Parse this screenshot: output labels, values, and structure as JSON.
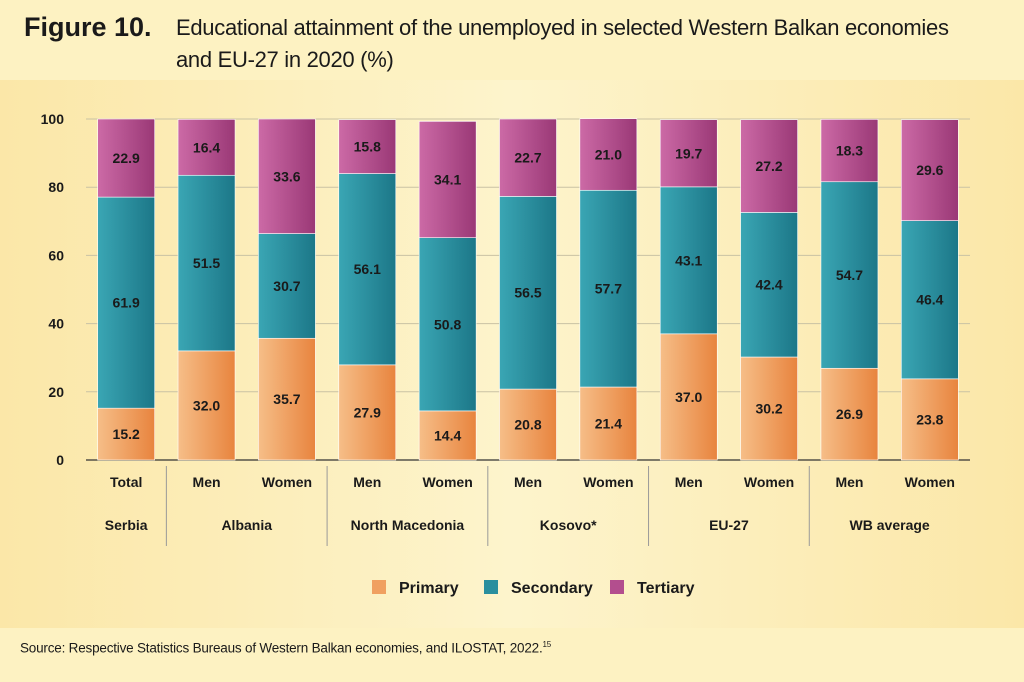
{
  "figure_label": "Figure 10.",
  "figure_title": "Educational attainment of the unemployed in selected Western Balkan economies and EU-27 in 2020 (%)",
  "source_text": "Source: Respective Statistics Bureaus of Western Balkan economies, and ILOSTAT, 2022.",
  "source_footnote": "15",
  "colors": {
    "primary": "#f0a060",
    "secondary": "#2a8f9e",
    "tertiary": "#b34e8e",
    "background": "#fdf2c2"
  },
  "chart_data": {
    "type": "bar",
    "stacked": true,
    "ylim": [
      0,
      100
    ],
    "yticks": [
      0,
      20,
      40,
      60,
      80,
      100
    ],
    "grid": true,
    "legend_position": "bottom",
    "categories": [
      "Total",
      "Men",
      "Women",
      "Men",
      "Women",
      "Men",
      "Women",
      "Men",
      "Women",
      "Men",
      "Women"
    ],
    "groups": [
      {
        "label": "Serbia",
        "size": 1
      },
      {
        "label": "Albania",
        "size": 2
      },
      {
        "label": "North Macedonia",
        "size": 2
      },
      {
        "label": "Kosovo*",
        "size": 2
      },
      {
        "label": "EU-27",
        "size": 2
      },
      {
        "label": "WB average",
        "size": 2
      }
    ],
    "series": [
      {
        "name": "Primary",
        "color": "#f0a060",
        "values": [
          15.2,
          32.0,
          35.7,
          27.9,
          14.4,
          20.8,
          21.4,
          37.0,
          30.2,
          26.9,
          23.8
        ]
      },
      {
        "name": "Secondary",
        "color": "#2a8f9e",
        "values": [
          61.9,
          51.5,
          30.7,
          56.1,
          50.8,
          56.5,
          57.7,
          43.1,
          42.4,
          54.7,
          46.4
        ]
      },
      {
        "name": "Tertiary",
        "color": "#b34e8e",
        "values": [
          22.9,
          16.4,
          33.6,
          15.8,
          34.1,
          22.7,
          21.0,
          19.7,
          27.2,
          18.3,
          29.6
        ]
      }
    ]
  }
}
